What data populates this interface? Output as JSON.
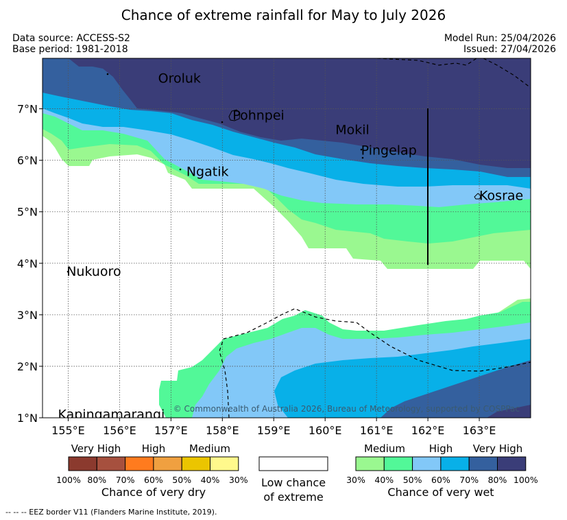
{
  "title": "Chance of extreme rainfall for May to July 2026",
  "meta": {
    "data_source": "Data source: ACCESS-S2",
    "base_period": "Base period: 1981-2018",
    "model_run": "Model Run: 25/04/2026",
    "issued": "Issued: 27/04/2026"
  },
  "map": {
    "lon_labels": [
      "155°E",
      "156°E",
      "157°E",
      "158°E",
      "159°E",
      "160°E",
      "161°E",
      "162°E",
      "163°E"
    ],
    "lat_labels": [
      "1°N",
      "2°N",
      "3°N",
      "4°N",
      "5°N",
      "6°N",
      "7°N"
    ],
    "places": [
      {
        "name": "Oroluk",
        "lon": 156.75,
        "lat": 7.6
      },
      {
        "name": "Pohnpei",
        "lon": 158.2,
        "lat": 6.88
      },
      {
        "name": "Mokil",
        "lon": 160.2,
        "lat": 6.6
      },
      {
        "name": "Pingelap",
        "lon": 160.7,
        "lat": 6.2
      },
      {
        "name": "Ngatik",
        "lon": 157.3,
        "lat": 5.79
      },
      {
        "name": "Kosrae",
        "lon": 163.0,
        "lat": 5.32
      },
      {
        "name": "Nukuoro",
        "lon": 154.97,
        "lat": 3.85
      },
      {
        "name": "Kapingamarangi",
        "lon": 154.8,
        "lat": 1.07
      }
    ],
    "copyright": "© Commonwealth of Australia 2026, Bureau of Meteorology, supported by COSPPac",
    "colors": {
      "very_wet_80_100": "#3a3d78",
      "very_wet_70_80": "#34609e",
      "high_wet_60_70": "#08b0e8",
      "high_wet_50_60": "#82c8f8",
      "med_wet_40_50": "#52f898",
      "med_wet_30_40": "#9af890"
    }
  },
  "legend": {
    "dry": {
      "headers": [
        "Very High",
        "High",
        "Medium"
      ],
      "ticks": [
        "100%",
        "80%",
        "70%",
        "60%",
        "50%",
        "40%",
        "30%"
      ],
      "title": "Chance of very dry",
      "colors": [
        "#8b3a2e",
        "#a6503e",
        "#ff7b1e",
        "#f0a040",
        "#ebc500",
        "#fff98c"
      ]
    },
    "neutral": {
      "line1": "Low chance",
      "line2": "of extreme"
    },
    "wet": {
      "headers": [
        "Medium",
        "High",
        "Very High"
      ],
      "ticks": [
        "30%",
        "40%",
        "50%",
        "60%",
        "70%",
        "80%",
        "100%"
      ],
      "title": "Chance of very wet",
      "colors": [
        "#9af890",
        "#52f898",
        "#82c8f8",
        "#08b0e8",
        "#34609e",
        "#3a3d78"
      ]
    }
  },
  "footer": "--  --  -- EEZ border V11 (Flanders Marine Institute, 2019)."
}
